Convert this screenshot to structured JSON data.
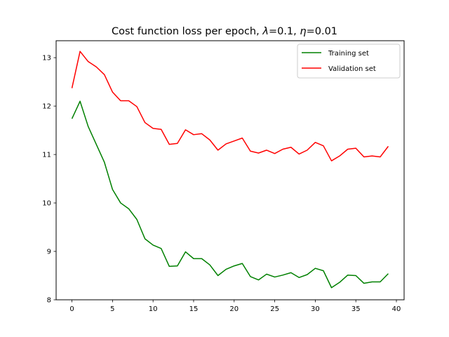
{
  "chart_data": {
    "type": "line",
    "title_prefix": "Cost function loss per epoch, ",
    "title_lambda_symbol": "λ",
    "title_lambda_value": "=0.1, ",
    "title_eta_symbol": "η",
    "title_eta_value": "=0.01",
    "xlabel": "",
    "ylabel": "",
    "xlim": [
      -1.95,
      40.95
    ],
    "ylim": [
      8,
      13.35
    ],
    "xticks": [
      0,
      5,
      10,
      15,
      20,
      25,
      30,
      35,
      40
    ],
    "yticks": [
      8,
      9,
      10,
      11,
      12,
      13
    ],
    "grid": false,
    "legend_position": "upper right",
    "x": [
      0,
      1,
      2,
      3,
      4,
      5,
      6,
      7,
      8,
      9,
      10,
      11,
      12,
      13,
      14,
      15,
      16,
      17,
      18,
      19,
      20,
      21,
      22,
      23,
      24,
      25,
      26,
      27,
      28,
      29,
      30,
      31,
      32,
      33,
      34,
      35,
      36,
      37,
      38,
      39
    ],
    "series": [
      {
        "name": "Training set",
        "color": "#008000",
        "values": [
          11.74,
          12.1,
          11.58,
          11.21,
          10.84,
          10.28,
          10.0,
          9.88,
          9.66,
          9.26,
          9.13,
          9.06,
          8.69,
          8.7,
          8.99,
          8.85,
          8.85,
          8.72,
          8.5,
          8.63,
          8.7,
          8.75,
          8.48,
          8.41,
          8.53,
          8.47,
          8.51,
          8.56,
          8.46,
          8.52,
          8.65,
          8.6,
          8.25,
          8.36,
          8.51,
          8.5,
          8.34,
          8.37,
          8.37,
          8.54
        ]
      },
      {
        "name": "Validation set",
        "color": "#ff0000",
        "values": [
          12.37,
          13.13,
          12.92,
          12.81,
          12.65,
          12.29,
          12.11,
          12.11,
          11.99,
          11.66,
          11.54,
          11.52,
          11.21,
          11.23,
          11.51,
          11.41,
          11.43,
          11.3,
          11.09,
          11.22,
          11.28,
          11.34,
          11.07,
          11.03,
          11.09,
          11.02,
          11.11,
          11.15,
          11.01,
          11.09,
          11.25,
          11.18,
          10.87,
          10.97,
          11.11,
          11.13,
          10.95,
          10.97,
          10.95,
          11.17
        ]
      }
    ]
  }
}
